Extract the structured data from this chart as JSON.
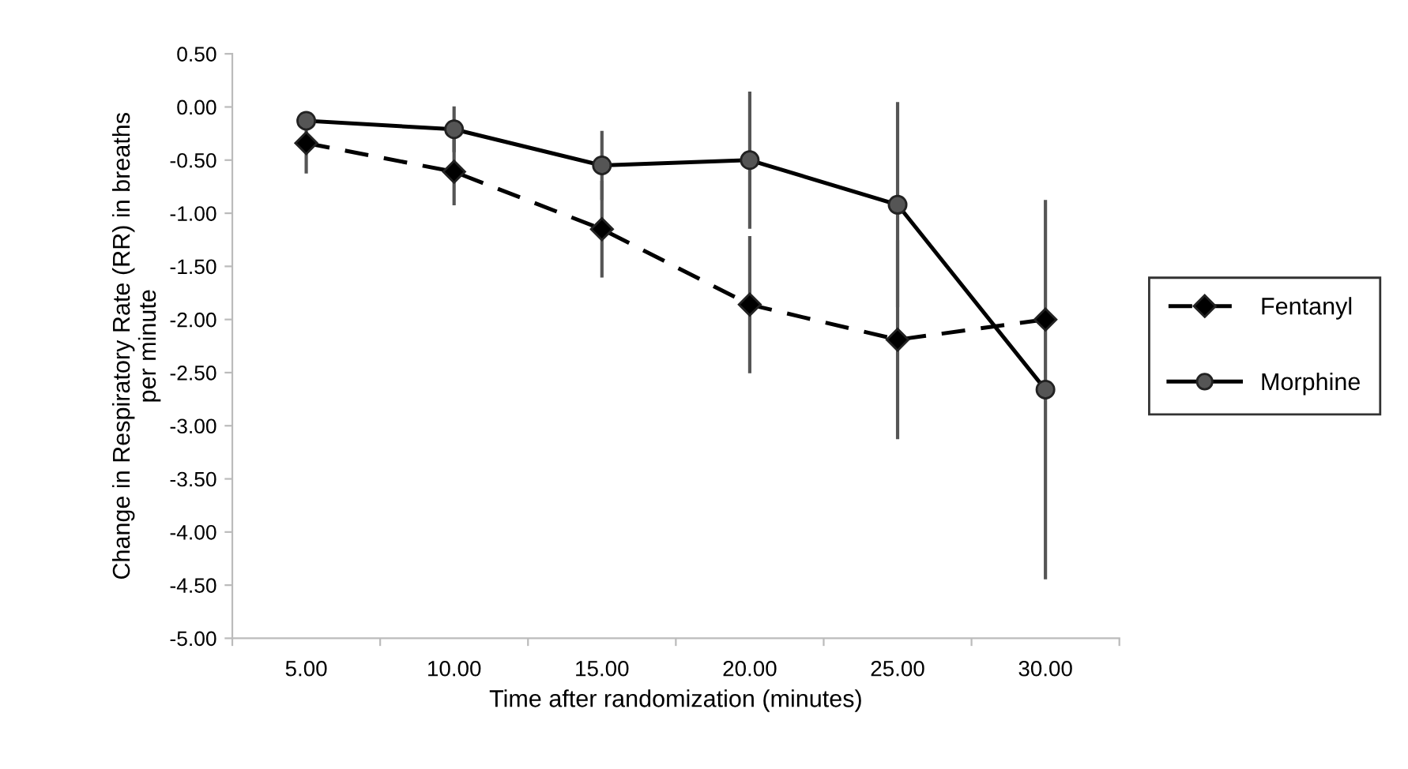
{
  "chart_data": {
    "type": "line",
    "xlabel": "Time after randomization (minutes)",
    "ylabel": "Change in Respiratory Rate (RR) in breaths\nper minute",
    "categories": [
      "5.00",
      "10.00",
      "15.00",
      "20.00",
      "25.00",
      "30.00"
    ],
    "series": [
      {
        "name": "Fentanyl",
        "color": "#000000",
        "marker": "diamond",
        "line_style": "dashed",
        "values": [
          -0.34,
          -0.61,
          -1.15,
          -1.86,
          -2.19,
          -2.0
        ],
        "errors": [
          0.27,
          0.3,
          0.44,
          0.63,
          0.92,
          null
        ]
      },
      {
        "name": "Morphine",
        "color": "#555555",
        "marker": "circle",
        "line_style": "solid",
        "values": [
          -0.13,
          -0.21,
          -0.55,
          -0.5,
          -0.92,
          -2.66
        ],
        "errors": [
          null,
          0.2,
          0.31,
          0.63,
          0.95,
          1.77
        ]
      }
    ],
    "ylim": [
      -5.0,
      0.5
    ],
    "yticks": [
      {
        "value": 0.5,
        "label": "0.50"
      },
      {
        "value": 0,
        "label": "0.00"
      },
      {
        "value": -0.5,
        "label": "-0.50"
      },
      {
        "value": -1,
        "label": "-1.00"
      },
      {
        "value": -1.5,
        "label": "-1.50"
      },
      {
        "value": -2,
        "label": "-2.00"
      },
      {
        "value": -2.5,
        "label": "-2.50"
      },
      {
        "value": -3,
        "label": "-3.00"
      },
      {
        "value": -3.5,
        "label": "-3.50"
      },
      {
        "value": -4,
        "label": "-4.00"
      },
      {
        "value": -4.5,
        "label": "-4.50"
      },
      {
        "value": -5,
        "label": "-5.00"
      }
    ],
    "grid": false,
    "legend": "right"
  }
}
